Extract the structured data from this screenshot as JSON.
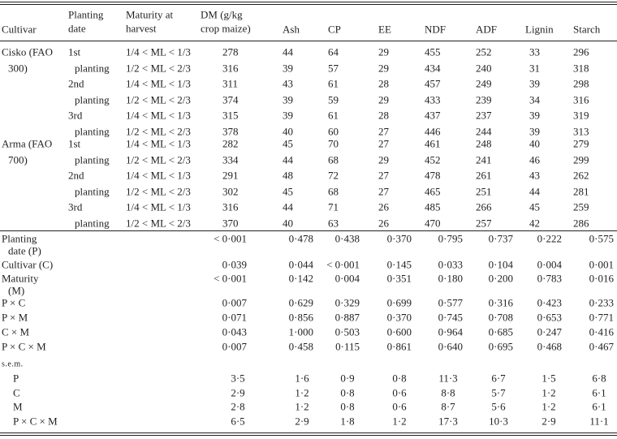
{
  "table": {
    "header": [
      [
        "Cultivar"
      ],
      [
        "Planting",
        "date"
      ],
      [
        "Maturity at",
        "harvest"
      ],
      [
        "DM (g/kg",
        "crop maize)"
      ],
      [
        "Ash"
      ],
      [
        "CP"
      ],
      [
        "EE"
      ],
      [
        "NDF"
      ],
      [
        "ADF"
      ],
      [
        "Lignin"
      ],
      [
        "Starch"
      ]
    ],
    "rows": [
      {
        "cells": [
          "Cisko (FAO",
          "1st",
          "1/4 < ML < 1/3",
          278,
          44,
          64,
          29,
          455,
          252,
          33,
          296
        ]
      },
      {
        "cells": [
          "300)",
          "planting",
          "1/2 < ML < 2/3",
          316,
          39,
          57,
          29,
          434,
          240,
          31,
          318
        ]
      },
      {
        "cells": [
          null,
          "2nd",
          "1/4 < ML < 1/3",
          311,
          43,
          61,
          28,
          457,
          249,
          39,
          298
        ]
      },
      {
        "cells": [
          null,
          "planting",
          "1/2 < ML < 2/3",
          374,
          39,
          59,
          29,
          433,
          239,
          34,
          316
        ]
      },
      {
        "cells": [
          null,
          "3rd",
          "1/4 < ML < 1/3",
          315,
          39,
          61,
          28,
          437,
          237,
          39,
          319
        ]
      },
      {
        "cells": [
          null,
          "planting",
          "1/2 < ML < 2/3",
          378,
          40,
          60,
          27,
          446,
          244,
          39,
          313
        ]
      },
      {
        "cells": [
          "Arma (FAO",
          "1st",
          "1/4 < ML < 1/3",
          282,
          45,
          70,
          27,
          461,
          248,
          40,
          279
        ]
      },
      {
        "cells": [
          "700)",
          "planting",
          "1/2 < ML < 2/3",
          334,
          44,
          68,
          29,
          452,
          241,
          46,
          299
        ]
      },
      {
        "cells": [
          null,
          "2nd",
          "1/4 < ML < 1/3",
          291,
          48,
          72,
          27,
          478,
          261,
          43,
          262
        ]
      },
      {
        "cells": [
          null,
          "planting",
          "1/2 < ML < 2/3",
          302,
          45,
          68,
          27,
          465,
          251,
          44,
          281
        ]
      },
      {
        "cells": [
          null,
          "3rd",
          "1/4 < ML < 1/3",
          316,
          44,
          71,
          26,
          485,
          266,
          45,
          259
        ]
      },
      {
        "cells": [
          null,
          "planting",
          "1/2 < ML < 2/3",
          370,
          40,
          63,
          26,
          470,
          257,
          42,
          286
        ]
      }
    ],
    "stats": [
      {
        "label": [
          "Planting",
          "date (P)"
        ],
        "values": [
          "< 0·001",
          "0·478",
          "0·438",
          "0·370",
          "0·795",
          "0·737",
          "0·222",
          "0·575"
        ]
      },
      {
        "label": [
          "Cultivar (C)"
        ],
        "values": [
          "0·039",
          "0·044",
          "< 0·001",
          "0·145",
          "0·033",
          "0·104",
          "0·004",
          "0·001"
        ]
      },
      {
        "label": [
          "Maturity",
          "(M)"
        ],
        "values": [
          "< 0·001",
          "0·142",
          "0·004",
          "0·351",
          "0·180",
          "0·200",
          "0·783",
          "0·016"
        ]
      },
      {
        "label": [
          "P × C"
        ],
        "values": [
          "0·007",
          "0·629",
          "0·329",
          "0·699",
          "0·577",
          "0·316",
          "0·423",
          "0·233"
        ]
      },
      {
        "label": [
          "P × M"
        ],
        "values": [
          "0·071",
          "0·856",
          "0·887",
          "0·370",
          "0·745",
          "0·708",
          "0·653",
          "0·771"
        ]
      },
      {
        "label": [
          "C × M"
        ],
        "values": [
          "0·043",
          "1·000",
          "0·503",
          "0·600",
          "0·964",
          "0·685",
          "0·247",
          "0·416"
        ]
      },
      {
        "label": [
          "P × C × M"
        ],
        "values": [
          "0·007",
          "0·458",
          "0·115",
          "0·861",
          "0·640",
          "0·695",
          "0·468",
          "0·467"
        ]
      }
    ],
    "sem_label": "s.e.m.",
    "sem": [
      {
        "label": "P",
        "values": [
          "3·5",
          "1·6",
          "0·9",
          "0·8",
          "11·3",
          "6·7",
          "1·5",
          "6·8"
        ]
      },
      {
        "label": "C",
        "values": [
          "2·9",
          "1·2",
          "0·8",
          "0·6",
          "8·8",
          "5·7",
          "1·2",
          "6·1"
        ]
      },
      {
        "label": "M",
        "values": [
          "2·8",
          "1·2",
          "0·8",
          "0·6",
          "8·7",
          "5·6",
          "1·2",
          "6·1"
        ]
      },
      {
        "label": "P × C × M",
        "values": [
          "6·5",
          "2·9",
          "1·8",
          "1·2",
          "17·3",
          "10·3",
          "2·9",
          "11·1"
        ]
      }
    ]
  }
}
